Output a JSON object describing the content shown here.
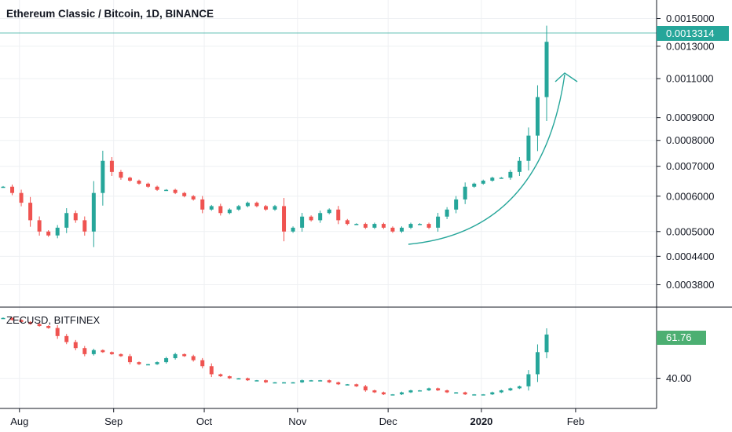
{
  "main_panel": {
    "title": "Ethereum Classic / Bitcoin, 1D, BINANCE",
    "last_price_label": "0.0013314",
    "price_ticks": [
      "0.0015000",
      "0.0013000",
      "0.0011000",
      "0.0009000",
      "0.0008000",
      "0.0007000",
      "0.0006000",
      "0.0005000",
      "0.0004400",
      "0.0003800"
    ]
  },
  "sub_panel": {
    "title": "ZECUSD, BITFINEX",
    "last_price_label": "61.76",
    "price_ticks": [
      "40.00"
    ]
  },
  "time_axis": {
    "labels": [
      "Aug",
      "Sep",
      "Oct",
      "Nov",
      "Dec",
      "2020",
      "Feb"
    ]
  },
  "colors": {
    "up": "#26a69a",
    "down": "#ef5350",
    "grid": "#eef0f3",
    "axis_text": "#131722",
    "last_price_line": "#26a69a",
    "annotation_arrow": "#26a69a"
  },
  "chart_data": [
    {
      "type": "candlestick",
      "title": "Ethereum Classic / Bitcoin, 1D, BINANCE",
      "y_scale": "log",
      "ylim": [
        0.00034,
        0.00165
      ],
      "last_price": 0.0013314,
      "annotation": "upward curved arrow from early Dec to mid Jan",
      "x": [
        "Jul 26",
        "Jul 29",
        "Aug 1",
        "Aug 4",
        "Aug 7",
        "Aug 10",
        "Aug 13",
        "Aug 16",
        "Aug 19",
        "Aug 22",
        "Aug 25",
        "Aug 28",
        "Aug 31",
        "Sep 3",
        "Sep 6",
        "Sep 9",
        "Sep 12",
        "Sep 15",
        "Sep 18",
        "Sep 21",
        "Sep 24",
        "Sep 27",
        "Sep 30",
        "Oct 3",
        "Oct 6",
        "Oct 9",
        "Oct 12",
        "Oct 15",
        "Oct 18",
        "Oct 21",
        "Oct 24",
        "Oct 27",
        "Oct 30",
        "Nov 2",
        "Nov 5",
        "Nov 8",
        "Nov 11",
        "Nov 14",
        "Nov 17",
        "Nov 20",
        "Nov 23",
        "Nov 26",
        "Nov 29",
        "Dec 2",
        "Dec 5",
        "Dec 8",
        "Dec 11",
        "Dec 14",
        "Dec 17",
        "Dec 20",
        "Dec 23",
        "Dec 26",
        "Dec 29",
        "Jan 1",
        "Jan 4",
        "Jan 7",
        "Jan 10",
        "Jan 13",
        "Jan 16",
        "Jan 17",
        "Jan 18"
      ],
      "series": [
        {
          "close": [
            0.00063,
            0.00061,
            0.00058,
            0.00053,
            0.0005,
            0.00049,
            0.00051,
            0.00055,
            0.00053,
            0.0005,
            0.00061,
            0.00072,
            0.00068,
            0.00066,
            0.00065,
            0.00064,
            0.00063,
            0.00062,
            0.00062,
            0.00061,
            0.0006,
            0.00059,
            0.00056,
            0.00057,
            0.00055,
            0.00056,
            0.00057,
            0.00058,
            0.00057,
            0.00056,
            0.00057,
            0.0005,
            0.00051,
            0.00054,
            0.00053,
            0.00055,
            0.00056,
            0.00053,
            0.00052,
            0.00052,
            0.00051,
            0.00052,
            0.00051,
            0.0005,
            0.00051,
            0.00052,
            0.00052,
            0.00051,
            0.00054,
            0.00056,
            0.00059,
            0.00063,
            0.00064,
            0.00065,
            0.00066,
            0.00066,
            0.00068,
            0.00072,
            0.00082,
            0.001,
            0.00133
          ]
        }
      ]
    },
    {
      "type": "candlestick",
      "title": "ZECUSD, BITFINEX",
      "ylim": [
        25,
        75
      ],
      "last_price": 61.76,
      "x": [
        "Jul 26",
        "Jul 29",
        "Aug 1",
        "Aug 4",
        "Aug 7",
        "Aug 10",
        "Aug 13",
        "Aug 16",
        "Aug 19",
        "Aug 22",
        "Aug 25",
        "Aug 28",
        "Aug 31",
        "Sep 3",
        "Sep 6",
        "Sep 9",
        "Sep 12",
        "Sep 15",
        "Sep 18",
        "Sep 21",
        "Sep 24",
        "Sep 27",
        "Sep 30",
        "Oct 3",
        "Oct 6",
        "Oct 9",
        "Oct 12",
        "Oct 15",
        "Oct 18",
        "Oct 21",
        "Oct 24",
        "Oct 27",
        "Oct 30",
        "Nov 2",
        "Nov 5",
        "Nov 8",
        "Nov 11",
        "Nov 14",
        "Nov 17",
        "Nov 20",
        "Nov 23",
        "Nov 26",
        "Nov 29",
        "Dec 2",
        "Dec 5",
        "Dec 8",
        "Dec 11",
        "Dec 14",
        "Dec 17",
        "Dec 20",
        "Dec 23",
        "Dec 26",
        "Dec 29",
        "Jan 1",
        "Jan 4",
        "Jan 7",
        "Jan 10",
        "Jan 13",
        "Jan 16",
        "Jan 17",
        "Jan 18"
      ],
      "series": [
        {
          "close": [
            70,
            69,
            68,
            67,
            66,
            65,
            61,
            58,
            55,
            52,
            54,
            53,
            52,
            51,
            48,
            47,
            47,
            48,
            50,
            52,
            51,
            49,
            46,
            42,
            41,
            40,
            40,
            39,
            39,
            38,
            38,
            38,
            38,
            39,
            39,
            39,
            38,
            37,
            37,
            36,
            34,
            33,
            32,
            32,
            33,
            34,
            34,
            35,
            34,
            33,
            33,
            32,
            32,
            32,
            33,
            34,
            35,
            36,
            42,
            53,
            61.76
          ]
        }
      ]
    }
  ]
}
